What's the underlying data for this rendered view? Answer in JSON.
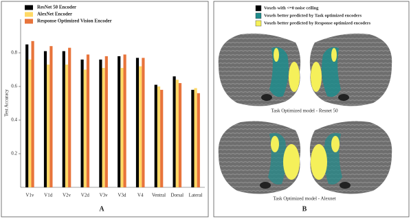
{
  "chart_data": {
    "type": "bar",
    "y_label": "Test Accuracy",
    "categories": [
      "V1v",
      "V1d",
      "V2v",
      "V2d",
      "V3v",
      "V3d",
      "V4",
      "Ventral",
      "Dorsal",
      "Lateral"
    ],
    "series": [
      {
        "name": "ResNet 50 Encoder",
        "color": "#000000",
        "values": [
          0.85,
          0.81,
          0.81,
          0.76,
          0.76,
          0.78,
          0.77,
          0.61,
          0.66,
          0.58
        ]
      },
      {
        "name": "AlexNet Encoder",
        "color": "#ffd966",
        "values": [
          0.76,
          0.73,
          0.73,
          0.7,
          0.71,
          0.71,
          0.72,
          0.6,
          0.64,
          0.59
        ]
      },
      {
        "name": "Response Optimized Vision Encoder",
        "color": "#e8743b",
        "values": [
          0.87,
          0.84,
          0.83,
          0.79,
          0.78,
          0.79,
          0.77,
          0.58,
          0.62,
          0.56
        ]
      }
    ],
    "ylim": [
      0,
      1.0
    ],
    "yticks": [
      0.2,
      0.4,
      0.6,
      0.8
    ],
    "legend": "upper-left"
  },
  "panel_labels": [
    "A",
    "B"
  ],
  "brain_figure": {
    "legend": [
      {
        "label": "Voxels with <=0 noise ceiling",
        "color": "#000000"
      },
      {
        "label": "Voxels better predicted by Task optimized encoders",
        "color": "#1f8c8c"
      },
      {
        "label": "Voxels better predicted by Response  optimized encoders",
        "color": "#f5f05a"
      }
    ],
    "captions": [
      "Task Optimized model - Resnet 50",
      "Task Optimized model - Alexnet"
    ]
  }
}
